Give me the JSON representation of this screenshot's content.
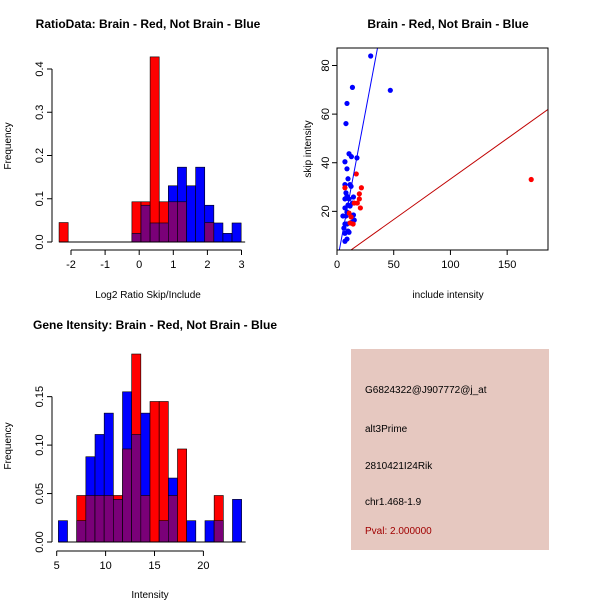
{
  "colors": {
    "red": "#ff0000",
    "blue": "#0000ff",
    "overlap": "#7a0078",
    "red_line": "#c00000",
    "info_bg": "#e6c8c0",
    "pval": "#a00000"
  },
  "chart_data": [
    {
      "type": "bar",
      "title": "RatioData: Brain - Red, Not Brain - Blue",
      "xlabel": "Log2 Ratio Skip/Include",
      "ylabel": "Frequency",
      "bin_start": -2.35,
      "bin_width": 0.267,
      "xticks": [
        -2,
        -1,
        0,
        1,
        2,
        3
      ],
      "yticks": [
        0,
        0.1,
        0.2,
        0.3,
        0.4
      ],
      "ytick_labels": [
        "0.0",
        "0.1",
        "0.2",
        "0.3",
        "0.4"
      ],
      "series": [
        {
          "name": "Brain",
          "color": "red",
          "values": [
            0.045,
            0,
            0,
            0,
            0,
            0,
            0,
            0,
            0.093,
            0.093,
            0.428,
            0.093,
            0.093,
            0.093,
            0,
            0,
            0.045,
            0,
            0,
            0
          ]
        },
        {
          "name": "Not Brain",
          "color": "blue",
          "values": [
            0,
            0,
            0,
            0,
            0,
            0,
            0,
            0,
            0.02,
            0.085,
            0.044,
            0.044,
            0.13,
            0.173,
            0.13,
            0.173,
            0.085,
            0.044,
            0.02,
            0.044
          ]
        }
      ]
    },
    {
      "type": "scatter",
      "title": "Brain - Red, Not Brain - Blue",
      "xlabel": "include intensity",
      "ylabel": "skip intensity",
      "xlim": [
        0,
        186
      ],
      "ylim": [
        4.1,
        87.2
      ],
      "xticks": [
        0,
        50,
        100,
        150
      ],
      "yticks": [
        20,
        40,
        60,
        80
      ],
      "series": [
        {
          "name": "Not Brain",
          "color": "blue",
          "points": [
            [
              29.7,
              83.9
            ],
            [
              47,
              69.8
            ],
            [
              13.6,
              71
            ],
            [
              8.8,
              64.4
            ],
            [
              7.9,
              56.1
            ],
            [
              10.6,
              43.7
            ],
            [
              12.7,
              42.5
            ],
            [
              17.6,
              42
            ],
            [
              7,
              40.4
            ],
            [
              8.8,
              37.5
            ],
            [
              9.7,
              33.4
            ],
            [
              7,
              31
            ],
            [
              11.5,
              31
            ],
            [
              12.4,
              30.3
            ],
            [
              7.9,
              27.6
            ],
            [
              8.8,
              26.2
            ],
            [
              7,
              25.1
            ],
            [
              10.6,
              25.1
            ],
            [
              14.5,
              25.9
            ],
            [
              13.6,
              23.4
            ],
            [
              9.7,
              22.6
            ],
            [
              11.5,
              22.2
            ],
            [
              7,
              21.4
            ],
            [
              5.2,
              18.1
            ],
            [
              7.9,
              18.1
            ],
            [
              8.8,
              19.7
            ],
            [
              14.5,
              18.5
            ],
            [
              7,
              14.8
            ],
            [
              8.8,
              14.8
            ],
            [
              6.1,
              13.1
            ],
            [
              7,
              11
            ],
            [
              9.7,
              11.9
            ],
            [
              8.8,
              8.6
            ],
            [
              7,
              7.7
            ],
            [
              10.6,
              11.4
            ],
            [
              13.3,
              15.6
            ],
            [
              15.2,
              16.4
            ]
          ],
          "fit": {
            "slope": 2.47,
            "intercept": -1
          }
        },
        {
          "name": "Brain",
          "color": "red",
          "points": [
            [
              17,
              35.4
            ],
            [
              21.5,
              29.7
            ],
            [
              19.7,
              27.2
            ],
            [
              19.7,
              25.1
            ],
            [
              17.9,
              23.4
            ],
            [
              15.2,
              23.4
            ],
            [
              20.6,
              21.4
            ],
            [
              7,
              29.7
            ],
            [
              12.4,
              17.7
            ],
            [
              14.2,
              14.8
            ],
            [
              11.5,
              15.2
            ],
            [
              171.2,
              33.1
            ],
            [
              10.6,
              19.3
            ]
          ],
          "fit": {
            "slope": 0.333,
            "intercept": 0
          }
        }
      ]
    },
    {
      "type": "bar",
      "title": "Gene Itensity: Brain - Red, Not Brain - Blue",
      "xlabel": "Intensity",
      "ylabel": "Frequency",
      "bin_start": 5.17,
      "bin_width": 0.937,
      "xticks": [
        5,
        10,
        15,
        20
      ],
      "yticks": [
        0,
        0.05,
        0.1,
        0.15
      ],
      "ytick_labels": [
        "0.00",
        "0.05",
        "0.10",
        "0.15"
      ],
      "series": [
        {
          "name": "Brain",
          "color": "red",
          "values": [
            0,
            0,
            0.048,
            0.048,
            0.048,
            0.048,
            0.048,
            0.096,
            0.194,
            0.048,
            0.145,
            0.145,
            0.048,
            0.096,
            0,
            0,
            0,
            0.048,
            0,
            0
          ]
        },
        {
          "name": "Not Brain",
          "color": "blue",
          "values": [
            0.022,
            0,
            0.022,
            0.088,
            0.111,
            0.133,
            0.044,
            0.155,
            0.111,
            0.133,
            0,
            0.022,
            0.066,
            0,
            0.022,
            0,
            0.022,
            0.022,
            0,
            0.044
          ]
        }
      ]
    }
  ],
  "info": {
    "probe": "G6824322@J907772@j_at",
    "type": "alt3Prime",
    "gene": "2810421I24Rik",
    "location": "chr1.468-1.9",
    "pval": "Pval: 2.000000"
  }
}
